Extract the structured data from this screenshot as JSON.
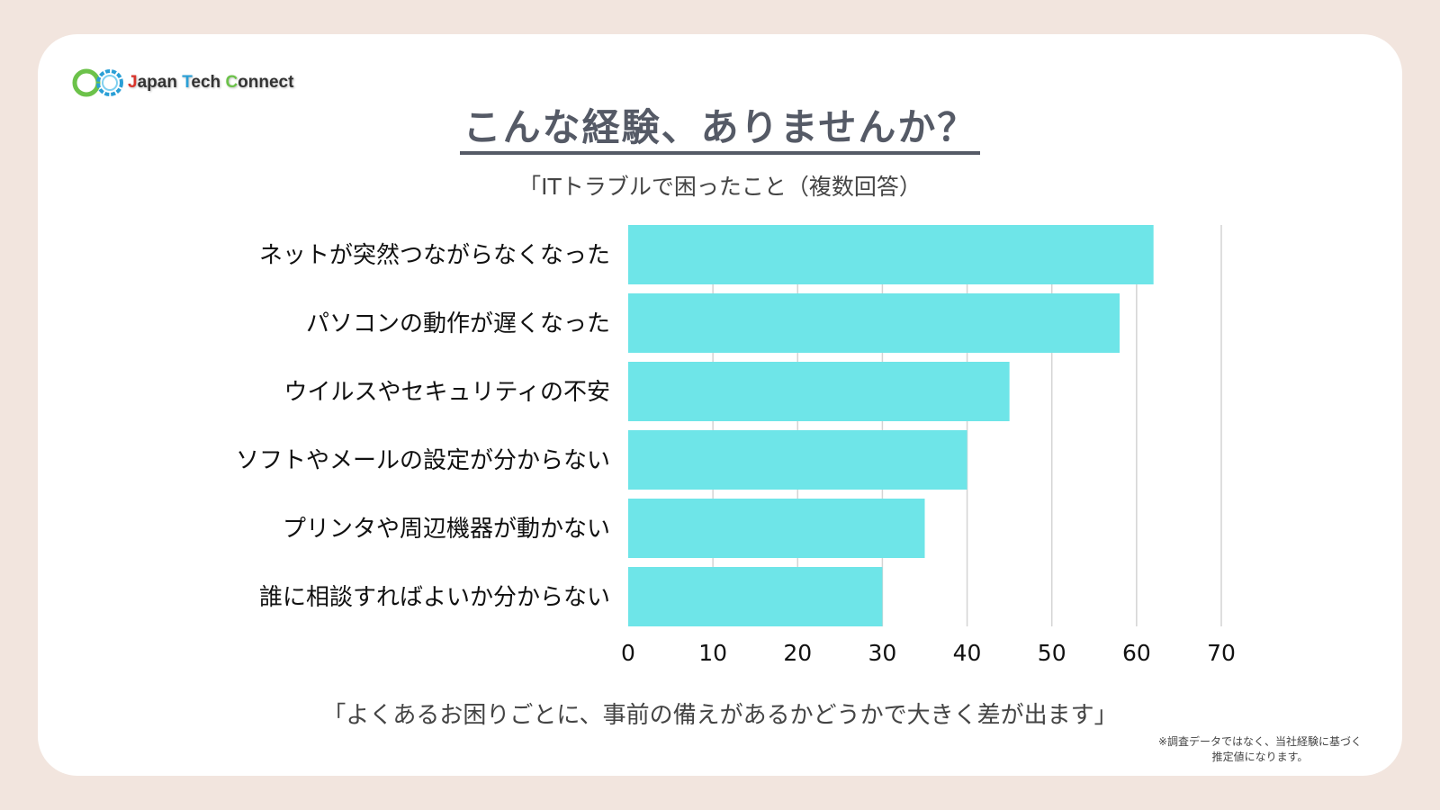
{
  "logo": {
    "name_part1": "J",
    "name_part2": "apan ",
    "name_part3": "T",
    "name_part4": "ech ",
    "name_part5": "C",
    "name_part6": "onnect"
  },
  "title": "こんな経験、ありませんか？",
  "subtitle": "「ITトラブルで困ったこと（複数回答）",
  "chart_data": {
    "type": "bar",
    "orientation": "horizontal",
    "categories": [
      "ネットが突然つながらなくなった",
      "パソコンの動作が遅くなった",
      "ウイルスやセキュリティの不安",
      "ソフトやメールの設定が分からない",
      "プリンタや周辺機器が動かない",
      "誰に相談すればよいか分からない"
    ],
    "values": [
      62,
      58,
      45,
      40,
      35,
      30
    ],
    "xlim": [
      0,
      70
    ],
    "xticks": [
      0,
      10,
      20,
      30,
      40,
      50,
      60,
      70
    ],
    "grid": true,
    "bar_color": "#6ee5e8"
  },
  "bottom_note": "「よくあるお困りごとに、事前の備えがあるかどうかで大きく差が出ます」",
  "footnote_line1": "※調査データではなく、当社経験に基づく",
  "footnote_line2": "推定値になります。"
}
